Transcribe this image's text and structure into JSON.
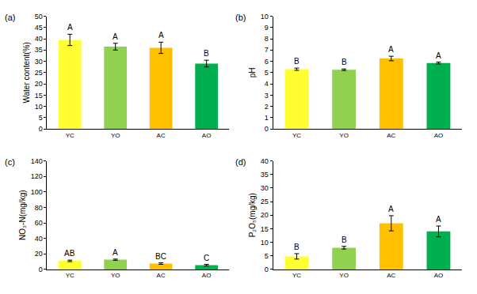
{
  "chart_data": [
    {
      "type": "bar",
      "title": "(a)",
      "y_label": "Water content(%)",
      "categories": [
        "YC",
        "YO",
        "AC",
        "AO"
      ],
      "values": [
        39.5,
        36.5,
        36,
        29
      ],
      "error": [
        2.5,
        1.5,
        2.5,
        1.5
      ],
      "annotations": [
        "A",
        "A",
        "A",
        "B"
      ],
      "colors": [
        "#ffff33",
        "#92d050",
        "#ffc000",
        "#00b050"
      ],
      "ylim": [
        0,
        50
      ],
      "yticks": [
        0,
        5,
        10,
        15,
        20,
        25,
        30,
        35,
        40,
        45,
        50
      ],
      "grid": false
    },
    {
      "type": "bar",
      "title": "(b)",
      "y_label": "pH",
      "categories": [
        "YC",
        "YO",
        "AC",
        "AO"
      ],
      "values": [
        5.3,
        5.25,
        6.25,
        5.85
      ],
      "error": [
        0.1,
        0.07,
        0.2,
        0.08
      ],
      "annotations": [
        "B",
        "B",
        "A",
        "A"
      ],
      "colors": [
        "#ffff33",
        "#92d050",
        "#ffc000",
        "#00b050"
      ],
      "ylim": [
        0,
        10
      ],
      "yticks": [
        0,
        1,
        2,
        3,
        4,
        5,
        6,
        7,
        8,
        9,
        10
      ],
      "grid": false
    },
    {
      "type": "bar",
      "title": "(c)",
      "y_label": "NO₃-N(mg/kg)",
      "categories": [
        "YC",
        "YO",
        "AC",
        "AO"
      ],
      "values": [
        11,
        12.5,
        7.5,
        5.5
      ],
      "error": [
        1,
        0.8,
        1,
        1
      ],
      "annotations": [
        "AB",
        "A",
        "BC",
        "C"
      ],
      "colors": [
        "#ffff33",
        "#92d050",
        "#ffc000",
        "#00b050"
      ],
      "ylim": [
        0,
        140
      ],
      "yticks": [
        0,
        20,
        40,
        60,
        80,
        100,
        120,
        140
      ],
      "grid": false
    },
    {
      "type": "bar",
      "title": "(d)",
      "y_label": "P₂O₅(mg/kg)",
      "categories": [
        "YC",
        "YO",
        "AC",
        "AO"
      ],
      "values": [
        4.8,
        8,
        17,
        14
      ],
      "error": [
        1,
        0.5,
        2.8,
        2
      ],
      "annotations": [
        "B",
        "B",
        "A",
        "A"
      ],
      "colors": [
        "#ffff33",
        "#92d050",
        "#ffc000",
        "#00b050"
      ],
      "ylim": [
        0,
        40
      ],
      "yticks": [
        0,
        5,
        10,
        15,
        20,
        25,
        30,
        35,
        40
      ],
      "grid": false
    }
  ]
}
